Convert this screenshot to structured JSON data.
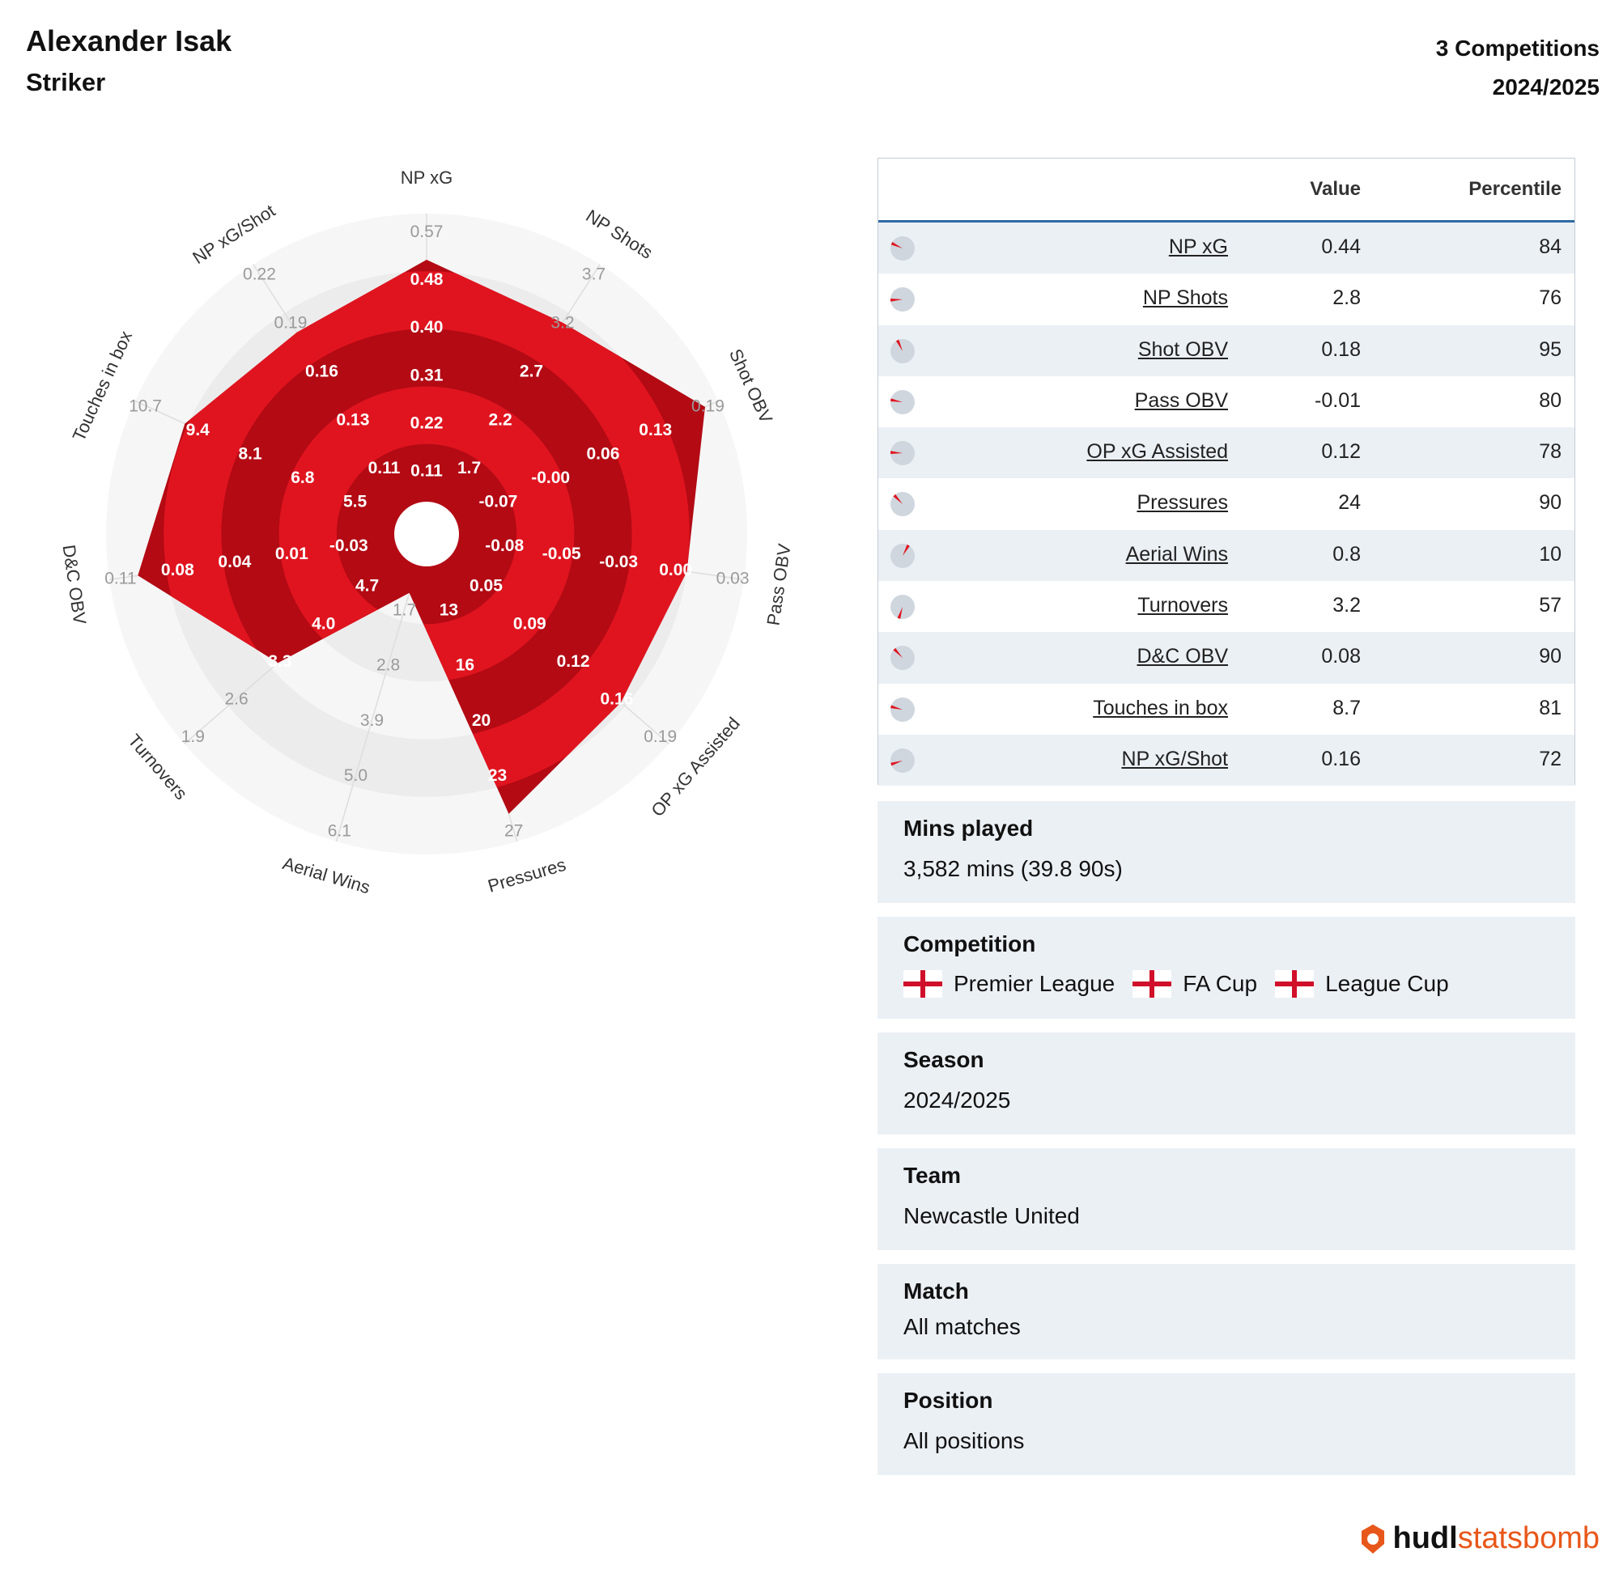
{
  "header": {
    "player_name": "Alexander Isak",
    "position": "Striker",
    "competitions_count": "3 Competitions",
    "season": "2024/2025"
  },
  "colors": {
    "radar_fill_a": "#e0141f",
    "radar_fill_b": "#b30a14",
    "ring_light": "#f6f6f6",
    "ring_dark": "#ececec",
    "table_rule": "#2f6aa5",
    "panel_bg": "#ebf0f5",
    "brand_orange": "#e8571a"
  },
  "chart_data": {
    "type": "radar",
    "metrics": [
      "NP xG",
      "NP Shots",
      "Shot OBV",
      "Pass OBV",
      "OP xG Assisted",
      "Pressures",
      "Aerial Wins",
      "Turnovers",
      "D&C OBV",
      "Touches in box",
      "NP xG/Shot"
    ],
    "values": [
      0.44,
      2.8,
      0.18,
      -0.01,
      0.12,
      24,
      0.8,
      3.2,
      0.08,
      8.7,
      0.16
    ],
    "percentiles": [
      84,
      76,
      95,
      80,
      78,
      90,
      10,
      57,
      90,
      81,
      72
    ],
    "ring_ticks": [
      [
        "0.11",
        "0.22",
        "0.31",
        "0.40",
        "0.48",
        "0.57"
      ],
      [
        "1.7",
        "2.2",
        "2.7",
        "3.2",
        "3.7"
      ],
      [
        "-0.07",
        "-0.00",
        "0.06",
        "0.13",
        "0.19"
      ],
      [
        "-0.08",
        "-0.05",
        "-0.03",
        "0.00",
        "0.03"
      ],
      [
        "0.05",
        "0.09",
        "0.12",
        "0.16",
        "0.19"
      ],
      [
        "13",
        "16",
        "20",
        "23",
        "27"
      ],
      [
        "1.7",
        "2.8",
        "3.9",
        "5.0",
        "6.1"
      ],
      [
        "4.7",
        "4.0",
        "3.3",
        "2.6",
        "1.9"
      ],
      [
        "-0.03",
        "0.01",
        "0.04",
        "0.08",
        "0.11"
      ],
      [
        "5.5",
        "6.8",
        "8.1",
        "9.4",
        "10.7"
      ],
      [
        "0.11",
        "0.13",
        "0.16",
        "0.19",
        "0.22"
      ]
    ]
  },
  "table": {
    "col_value": "Value",
    "col_percentile": "Percentile",
    "rows": [
      {
        "metric": "NP xG",
        "value": "0.44",
        "percentile": "84"
      },
      {
        "metric": "NP Shots",
        "value": "2.8",
        "percentile": "76"
      },
      {
        "metric": "Shot OBV",
        "value": "0.18",
        "percentile": "95"
      },
      {
        "metric": "Pass OBV",
        "value": "-0.01",
        "percentile": "80"
      },
      {
        "metric": "OP xG Assisted",
        "value": "0.12",
        "percentile": "78"
      },
      {
        "metric": "Pressures",
        "value": "24",
        "percentile": "90"
      },
      {
        "metric": "Aerial Wins",
        "value": "0.8",
        "percentile": "10"
      },
      {
        "metric": "Turnovers",
        "value": "3.2",
        "percentile": "57"
      },
      {
        "metric": "D&C OBV",
        "value": "0.08",
        "percentile": "90"
      },
      {
        "metric": "Touches in box",
        "value": "8.7",
        "percentile": "81"
      },
      {
        "metric": "NP xG/Shot",
        "value": "0.16",
        "percentile": "72"
      }
    ]
  },
  "info": {
    "mins": {
      "label": "Mins played",
      "value": "3,582 mins (39.8 90s)"
    },
    "competition": {
      "label": "Competition",
      "items": [
        "Premier League",
        "FA Cup",
        "League Cup"
      ]
    },
    "season": {
      "label": "Season",
      "value": "2024/2025"
    },
    "team": {
      "label": "Team",
      "value": "Newcastle United"
    },
    "match": {
      "label": "Match",
      "value": "All matches"
    },
    "position": {
      "label": "Position",
      "value": "All positions"
    }
  },
  "brand": {
    "hudl": "hudl",
    "statsbomb": "statsbomb"
  }
}
